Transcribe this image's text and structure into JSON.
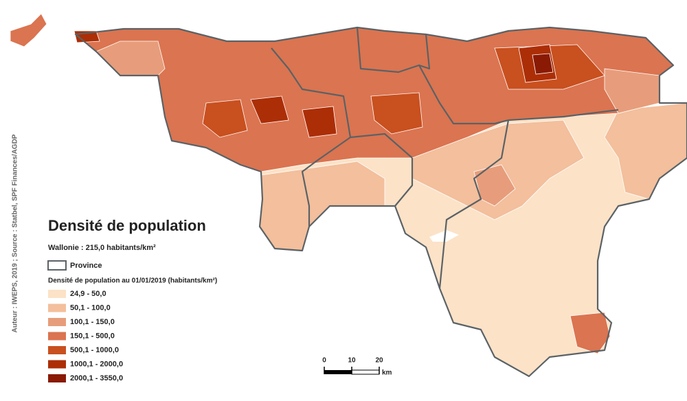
{
  "title": "Densité de population",
  "subtitle": "Wallonie : 215,0 habitants/km²",
  "province_label": "Province",
  "legend": {
    "title": "Densité de population au 01/01/2019 (habitants/km²)",
    "classes": [
      {
        "label": "24,9 - 50,0",
        "color": "#fce2c7"
      },
      {
        "label": "50,1 - 100,0",
        "color": "#f3bf9c"
      },
      {
        "label": "100,1 - 150,0",
        "color": "#e79d7b"
      },
      {
        "label": "150,1 - 500,0",
        "color": "#db7450"
      },
      {
        "label": "500,1 - 1000,0",
        "color": "#c9501f"
      },
      {
        "label": "1000,1 - 2000,0",
        "color": "#ac2e06"
      },
      {
        "label": "2000,1 - 3550,0",
        "color": "#8a1a04"
      }
    ]
  },
  "scale": {
    "ticks": [
      0,
      10,
      20
    ],
    "unit": "km"
  },
  "credit": "Auteur : IWEPS, 2019 ; Source : Statbel, SPF Finances/AGDP"
}
